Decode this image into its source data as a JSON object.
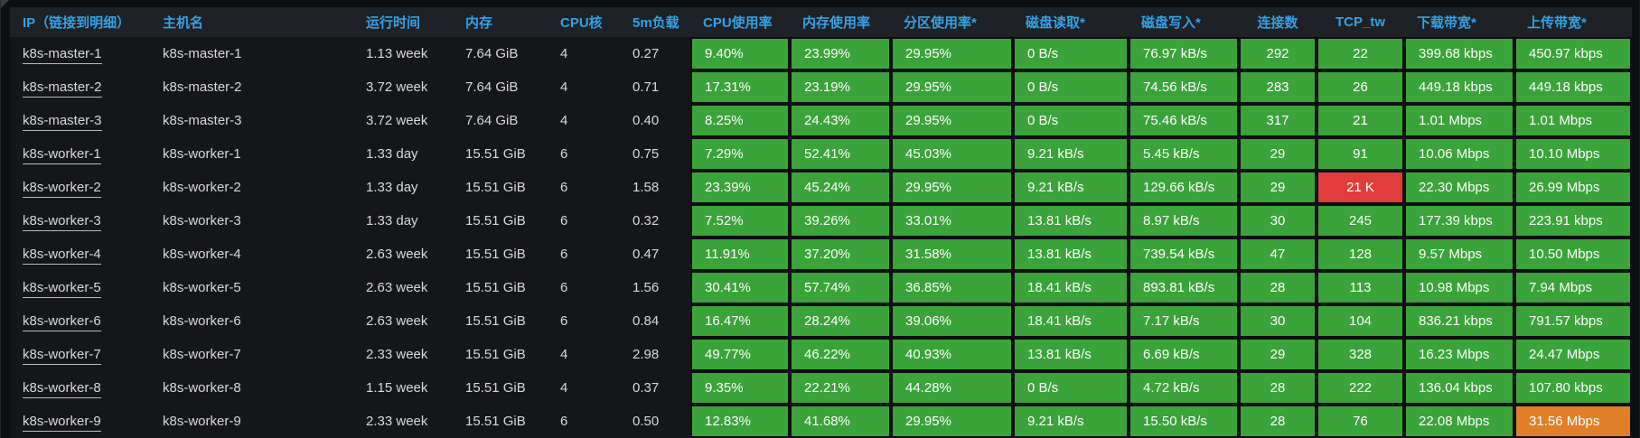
{
  "colors": {
    "header_text": "#33a2e5",
    "cell_green": "#3aa33a",
    "cell_red": "#e13d3d",
    "cell_orange": "#e07f28",
    "link_text": "#d8d9da"
  },
  "table": {
    "columns": [
      {
        "id": "ip",
        "label": "IP（链接到明细）"
      },
      {
        "id": "hostname",
        "label": "主机名"
      },
      {
        "id": "uptime",
        "label": "运行时间"
      },
      {
        "id": "memory",
        "label": "内存"
      },
      {
        "id": "cpu_cores",
        "label": "CPU核"
      },
      {
        "id": "load_5m",
        "label": "5m负载"
      },
      {
        "id": "cpu_usage",
        "label": "CPU使用率"
      },
      {
        "id": "mem_usage",
        "label": "内存使用率"
      },
      {
        "id": "partition_usage",
        "label": "分区使用率*"
      },
      {
        "id": "disk_read",
        "label": "磁盘读取*"
      },
      {
        "id": "disk_write",
        "label": "磁盘写入*"
      },
      {
        "id": "connections",
        "label": "连接数"
      },
      {
        "id": "tcp_tw",
        "label": "TCP_tw"
      },
      {
        "id": "download_bw",
        "label": "下载带宽*"
      },
      {
        "id": "upload_bw",
        "label": "上传带宽*"
      }
    ],
    "rows": [
      {
        "ip": "k8s-master-1",
        "hostname": "k8s-master-1",
        "uptime": "1.13 week",
        "memory": "7.64 GiB",
        "cpu_cores": "4",
        "load_5m": "0.27",
        "cpu_usage": "9.40%",
        "mem_usage": "23.99%",
        "partition_usage": "29.95%",
        "disk_read": "0 B/s",
        "disk_write": "76.97 kB/s",
        "connections": "292",
        "tcp_tw": "22",
        "download_bw": "399.68 kbps",
        "upload_bw": "450.97 kbps",
        "highlight": {}
      },
      {
        "ip": "k8s-master-2",
        "hostname": "k8s-master-2",
        "uptime": "3.72 week",
        "memory": "7.64 GiB",
        "cpu_cores": "4",
        "load_5m": "0.71",
        "cpu_usage": "17.31%",
        "mem_usage": "23.19%",
        "partition_usage": "29.95%",
        "disk_read": "0 B/s",
        "disk_write": "74.56 kB/s",
        "connections": "283",
        "tcp_tw": "26",
        "download_bw": "449.18 kbps",
        "upload_bw": "449.18 kbps",
        "highlight": {}
      },
      {
        "ip": "k8s-master-3",
        "hostname": "k8s-master-3",
        "uptime": "3.72 week",
        "memory": "7.64 GiB",
        "cpu_cores": "4",
        "load_5m": "0.40",
        "cpu_usage": "8.25%",
        "mem_usage": "24.43%",
        "partition_usage": "29.95%",
        "disk_read": "0 B/s",
        "disk_write": "75.46 kB/s",
        "connections": "317",
        "tcp_tw": "21",
        "download_bw": "1.01 Mbps",
        "upload_bw": "1.01 Mbps",
        "highlight": {}
      },
      {
        "ip": "k8s-worker-1",
        "hostname": "k8s-worker-1",
        "uptime": "1.33 day",
        "memory": "15.51 GiB",
        "cpu_cores": "6",
        "load_5m": "0.75",
        "cpu_usage": "7.29%",
        "mem_usage": "52.41%",
        "partition_usage": "45.03%",
        "disk_read": "9.21 kB/s",
        "disk_write": "5.45 kB/s",
        "connections": "29",
        "tcp_tw": "91",
        "download_bw": "10.06 Mbps",
        "upload_bw": "10.10 Mbps",
        "highlight": {}
      },
      {
        "ip": "k8s-worker-2",
        "hostname": "k8s-worker-2",
        "uptime": "1.33 day",
        "memory": "15.51 GiB",
        "cpu_cores": "6",
        "load_5m": "1.58",
        "cpu_usage": "23.39%",
        "mem_usage": "45.24%",
        "partition_usage": "29.95%",
        "disk_read": "9.21 kB/s",
        "disk_write": "129.66 kB/s",
        "connections": "29",
        "tcp_tw": "21 K",
        "download_bw": "22.30 Mbps",
        "upload_bw": "26.99 Mbps",
        "highlight": {
          "tcp_tw": "cell_red"
        }
      },
      {
        "ip": "k8s-worker-3",
        "hostname": "k8s-worker-3",
        "uptime": "1.33 day",
        "memory": "15.51 GiB",
        "cpu_cores": "6",
        "load_5m": "0.32",
        "cpu_usage": "7.52%",
        "mem_usage": "39.26%",
        "partition_usage": "33.01%",
        "disk_read": "13.81 kB/s",
        "disk_write": "8.97 kB/s",
        "connections": "30",
        "tcp_tw": "245",
        "download_bw": "177.39 kbps",
        "upload_bw": "223.91 kbps",
        "highlight": {}
      },
      {
        "ip": "k8s-worker-4",
        "hostname": "k8s-worker-4",
        "uptime": "2.63 week",
        "memory": "15.51 GiB",
        "cpu_cores": "6",
        "load_5m": "0.47",
        "cpu_usage": "11.91%",
        "mem_usage": "37.20%",
        "partition_usage": "31.58%",
        "disk_read": "13.81 kB/s",
        "disk_write": "739.54 kB/s",
        "connections": "47",
        "tcp_tw": "128",
        "download_bw": "9.57 Mbps",
        "upload_bw": "10.50 Mbps",
        "highlight": {}
      },
      {
        "ip": "k8s-worker-5",
        "hostname": "k8s-worker-5",
        "uptime": "2.63 week",
        "memory": "15.51 GiB",
        "cpu_cores": "6",
        "load_5m": "1.56",
        "cpu_usage": "30.41%",
        "mem_usage": "57.74%",
        "partition_usage": "36.85%",
        "disk_read": "18.41 kB/s",
        "disk_write": "893.81 kB/s",
        "connections": "28",
        "tcp_tw": "113",
        "download_bw": "10.98 Mbps",
        "upload_bw": "7.94 Mbps",
        "highlight": {}
      },
      {
        "ip": "k8s-worker-6",
        "hostname": "k8s-worker-6",
        "uptime": "2.63 week",
        "memory": "15.51 GiB",
        "cpu_cores": "6",
        "load_5m": "0.84",
        "cpu_usage": "16.47%",
        "mem_usage": "28.24%",
        "partition_usage": "39.06%",
        "disk_read": "18.41 kB/s",
        "disk_write": "7.17 kB/s",
        "connections": "30",
        "tcp_tw": "104",
        "download_bw": "836.21 kbps",
        "upload_bw": "791.57 kbps",
        "highlight": {}
      },
      {
        "ip": "k8s-worker-7",
        "hostname": "k8s-worker-7",
        "uptime": "2.33 week",
        "memory": "15.51 GiB",
        "cpu_cores": "4",
        "load_5m": "2.98",
        "cpu_usage": "49.77%",
        "mem_usage": "46.22%",
        "partition_usage": "40.93%",
        "disk_read": "13.81 kB/s",
        "disk_write": "6.69 kB/s",
        "connections": "29",
        "tcp_tw": "328",
        "download_bw": "16.23 Mbps",
        "upload_bw": "24.47 Mbps",
        "highlight": {}
      },
      {
        "ip": "k8s-worker-8",
        "hostname": "k8s-worker-8",
        "uptime": "1.15 week",
        "memory": "15.51 GiB",
        "cpu_cores": "4",
        "load_5m": "0.37",
        "cpu_usage": "9.35%",
        "mem_usage": "22.21%",
        "partition_usage": "44.28%",
        "disk_read": "0 B/s",
        "disk_write": "4.72 kB/s",
        "connections": "28",
        "tcp_tw": "222",
        "download_bw": "136.04 kbps",
        "upload_bw": "107.80 kbps",
        "highlight": {}
      },
      {
        "ip": "k8s-worker-9",
        "hostname": "k8s-worker-9",
        "uptime": "2.33 week",
        "memory": "15.51 GiB",
        "cpu_cores": "6",
        "load_5m": "0.50",
        "cpu_usage": "12.83%",
        "mem_usage": "41.68%",
        "partition_usage": "29.95%",
        "disk_read": "9.21 kB/s",
        "disk_write": "15.50 kB/s",
        "connections": "28",
        "tcp_tw": "76",
        "download_bw": "22.08 Mbps",
        "upload_bw": "31.56 Mbps",
        "highlight": {
          "upload_bw": "cell_orange"
        }
      }
    ]
  }
}
